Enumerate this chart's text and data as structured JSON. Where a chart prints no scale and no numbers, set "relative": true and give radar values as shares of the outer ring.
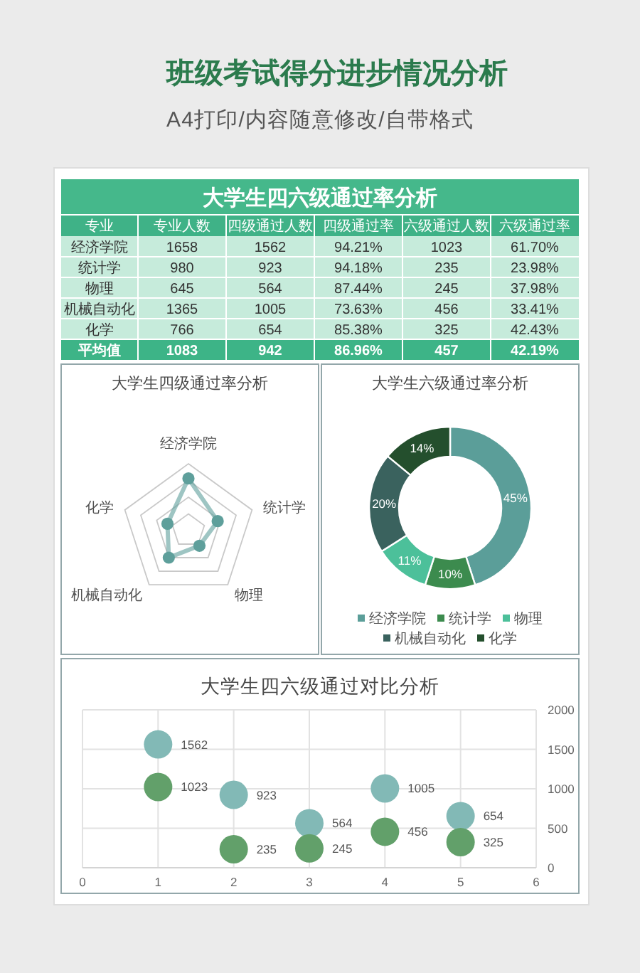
{
  "chart_data": [
    {
      "type": "other",
      "title": "班级考试得分进步情况分析",
      "subtitle": "A4打印/内容随意修改/自带格式"
    },
    {
      "type": "heatmap",
      "title": "大学生四六级通过率分析",
      "ylabel": "专业",
      "categories": [
        "专业人数",
        "四级通过人数",
        "四级通过率",
        "六级通过人数",
        "六级通过率"
      ],
      "y_categories": [
        "经济学院",
        "统计学",
        "物理",
        "机械自动化",
        "化学",
        "平均值"
      ],
      "cells": [
        [
          1658,
          1562,
          94.21,
          1023,
          61.7
        ],
        [
          980,
          923,
          94.18,
          235,
          23.98
        ],
        [
          645,
          564,
          87.44,
          245,
          37.98
        ],
        [
          1365,
          1005,
          73.63,
          456,
          33.41
        ],
        [
          766,
          654,
          85.38,
          325,
          42.43
        ],
        [
          1083,
          942,
          86.96,
          457,
          42.19
        ]
      ],
      "cell_labels": [
        [
          "1658",
          "1562",
          "94.21%",
          "1023",
          "61.70%"
        ],
        [
          "980",
          "923",
          "94.18%",
          "235",
          "23.98%"
        ],
        [
          "645",
          "564",
          "87.44%",
          "245",
          "37.98%"
        ],
        [
          "1365",
          "1005",
          "73.63%",
          "456",
          "33.41%"
        ],
        [
          "766",
          "654",
          "85.38%",
          "325",
          "42.43%"
        ],
        [
          "1083",
          "942",
          "86.96%",
          "457",
          "42.19%"
        ]
      ]
    },
    {
      "type": "radar",
      "title": "大学生四级通过率分析",
      "categories": [
        "经济学院",
        "统计学",
        "物理",
        "机械自动化",
        "化学"
      ],
      "relative": true,
      "grid": true,
      "marker": "circle",
      "series": [
        {
          "color": "#5e9f9b",
          "values": [
            0.78,
            0.46,
            0.28,
            0.5,
            0.33
          ]
        }
      ]
    },
    {
      "type": "donut",
      "title": "大学生六级通过率分析",
      "categories": [
        "经济学院",
        "统计学",
        "物理",
        "机械自动化",
        "化学"
      ],
      "values": [
        45,
        10,
        11,
        20,
        14
      ],
      "colors": [
        "#5b9e99",
        "#3c8b4e",
        "#4cc09a",
        "#3a625e",
        "#244f2d"
      ],
      "value_labels": [
        "45%",
        "10%",
        "11%",
        "20%",
        "14%"
      ],
      "legend": "bottom"
    },
    {
      "type": "scatter",
      "title": "大学生四六级通过对比分析",
      "x": [
        1,
        2,
        3,
        4,
        5
      ],
      "xlim": [
        0,
        6
      ],
      "xticks": [
        0,
        1,
        2,
        3,
        4,
        5,
        6
      ],
      "ylim": [
        0,
        2000
      ],
      "yticks": [
        0,
        500,
        1000,
        1500,
        2000
      ],
      "grid": true,
      "marker": "circle",
      "data_labels": true,
      "series": [
        {
          "color": "#82b9b6",
          "values": [
            1562,
            923,
            564,
            1005,
            654
          ]
        },
        {
          "color": "#62a06a",
          "values": [
            1023,
            235,
            245,
            456,
            325
          ]
        }
      ]
    }
  ]
}
